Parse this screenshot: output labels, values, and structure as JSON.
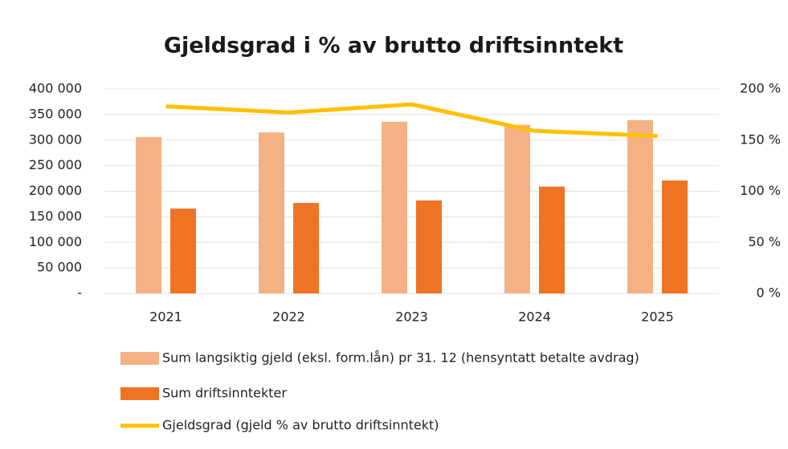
{
  "chart_data": {
    "type": "bar",
    "title": "Gjeldsgrad i % av brutto driftsinntekt",
    "categories": [
      "2021",
      "2022",
      "2023",
      "2024",
      "2025"
    ],
    "series": [
      {
        "name": "Sum langsiktig gjeld (eksl. form.lån) pr 31. 12 (hensyntatt betalte avdrag)",
        "type": "bar",
        "color": "#f4b183",
        "values": [
          306000,
          315000,
          336000,
          330000,
          339000
        ]
      },
      {
        "name": "Sum driftsinntekter",
        "type": "bar",
        "color": "#ee7424",
        "values": [
          166000,
          177000,
          182000,
          209000,
          221000
        ]
      },
      {
        "name": "Gjeldsgrad (gjeld % av brutto driftsinntekt)",
        "type": "line",
        "axis": "y2",
        "color": "#ffc000",
        "values": [
          183,
          177,
          185,
          159,
          154
        ]
      }
    ],
    "ylim": [
      0,
      400000
    ],
    "yticks": [
      {
        "value": 0,
        "label": "-"
      },
      {
        "value": 50000,
        "label": "50 000"
      },
      {
        "value": 100000,
        "label": "100 000"
      },
      {
        "value": 150000,
        "label": "150 000"
      },
      {
        "value": 200000,
        "label": "200 000"
      },
      {
        "value": 250000,
        "label": "250 000"
      },
      {
        "value": 300000,
        "label": "300 000"
      },
      {
        "value": 350000,
        "label": "350 000"
      },
      {
        "value": 400000,
        "label": "400 000"
      }
    ],
    "y2lim": [
      0,
      200
    ],
    "y2ticks": [
      {
        "value": 0,
        "label": "0 %"
      },
      {
        "value": 50,
        "label": "50 %"
      },
      {
        "value": 100,
        "label": "100 %"
      },
      {
        "value": 150,
        "label": "150 %"
      },
      {
        "value": 200,
        "label": "200 %"
      }
    ],
    "grid": true,
    "legend": "bottom"
  }
}
